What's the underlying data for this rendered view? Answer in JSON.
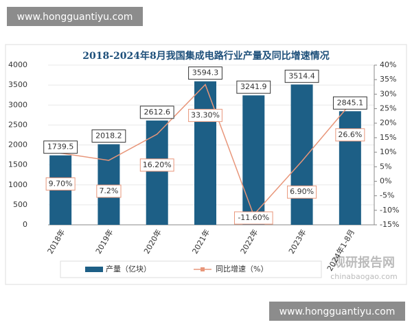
{
  "chart_data": {
    "type": "bar",
    "title": "2018-2024年8月我国集成电路行业产量及同比增速情况",
    "categories": [
      "2018年",
      "2019年",
      "2020年",
      "2021年",
      "2022年",
      "2023年",
      "2024年1-8月"
    ],
    "series": [
      {
        "name": "产量（亿块）",
        "type": "bar",
        "color": "#1d5f86",
        "values": [
          1739.5,
          2018.2,
          2612.6,
          3594.3,
          3241.9,
          3514.4,
          2845.1
        ]
      },
      {
        "name": "同比增速（%）",
        "type": "line",
        "axis": "y2",
        "color": "#e8967a",
        "values": [
          9.7,
          7.2,
          16.2,
          33.3,
          -11.6,
          6.9,
          26.6
        ],
        "value_labels": [
          "9.70%",
          "7.2%",
          "16.20%",
          "33.30%",
          "-11.60%",
          "6.90%",
          "26.6%"
        ]
      }
    ],
    "ylim": [
      0,
      4000
    ],
    "yticks": [
      0,
      500,
      1000,
      1500,
      2000,
      2500,
      3000,
      3500,
      4000
    ],
    "y2lim": [
      -15,
      40
    ],
    "y2ticks": [
      {
        "value": -15,
        "label": "-15%"
      },
      {
        "value": -10,
        "label": "-10%"
      },
      {
        "value": -5,
        "label": "-5%"
      },
      {
        "value": 0,
        "label": "0%"
      },
      {
        "value": 5,
        "label": "5%"
      },
      {
        "value": 10,
        "label": "10%"
      },
      {
        "value": 15,
        "label": "15%"
      },
      {
        "value": 20,
        "label": "20%"
      },
      {
        "value": 25,
        "label": "25%"
      },
      {
        "value": 30,
        "label": "30%"
      },
      {
        "value": 35,
        "label": "35%"
      },
      {
        "value": 40,
        "label": "40%"
      }
    ],
    "grid": true,
    "watermarks": [
      "www.hongguantiyu.com",
      "www.hongguantiyu.com"
    ],
    "logo": "观研报告网",
    "logo_url": "chinabaogao.com"
  }
}
